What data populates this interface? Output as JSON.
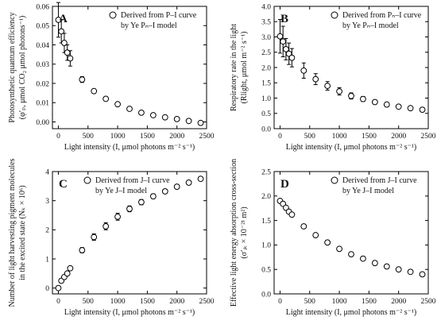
{
  "chart_data": [
    {
      "type": "scatter",
      "panel_letter": "A",
      "xlabel": "Light intensity (I, μmol photons m⁻² s⁻¹)",
      "ylabel_line1": "Photosynthetic quantum efficiency",
      "ylabel_line2": "(φ′ₚ, μmol CO₂ μmol photons⁻¹)",
      "xlim": [
        -100,
        2500
      ],
      "ylim": [
        -0.0035,
        0.06
      ],
      "xticks": [
        0,
        500,
        1000,
        1500,
        2000,
        2500
      ],
      "yticks": [
        0.0,
        0.01,
        0.02,
        0.03,
        0.04,
        0.05,
        0.06
      ],
      "ytick_labels": [
        "0.00",
        "0.01",
        "0.02",
        "0.03",
        "0.04",
        "0.05",
        "0.06"
      ],
      "legend_line1": "Derived from P–I curve",
      "legend_line2": "by Ye Pₙ–I model",
      "legend_position": "top-right",
      "x": [
        0,
        50,
        100,
        150,
        200,
        400,
        600,
        800,
        1000,
        1200,
        1400,
        1600,
        1800,
        2000,
        2200,
        2400
      ],
      "y": [
        0.053,
        0.047,
        0.041,
        0.036,
        0.033,
        0.022,
        0.016,
        0.012,
        0.0092,
        0.0068,
        0.0048,
        0.0035,
        0.0024,
        0.0015,
        0.0005,
        -0.0005
      ],
      "err": [
        0.009,
        0.006,
        0.005,
        0.004,
        0.004,
        0.0015,
        0.001,
        0.001,
        0.0008,
        0.0007,
        0.0006,
        0.0005,
        0.0005,
        0.0005,
        0.0005,
        0.0005
      ]
    },
    {
      "type": "scatter",
      "panel_letter": "B",
      "xlabel": "Light intensity (I, μmol photons m⁻² s⁻¹)",
      "ylabel_line1": "Respiratory rate in the light",
      "ylabel_line2": "(Rlight, μmol m⁻² s⁻¹)",
      "xlim": [
        -100,
        2500
      ],
      "ylim": [
        0,
        4.0
      ],
      "xticks": [
        0,
        500,
        1000,
        1500,
        2000,
        2500
      ],
      "yticks": [
        0.0,
        0.5,
        1.0,
        1.5,
        2.0,
        2.5,
        3.0,
        3.5,
        4.0
      ],
      "ytick_labels": [
        "0.0",
        "0.5",
        "1.0",
        "1.5",
        "2.0",
        "2.5",
        "3.0",
        "3.5",
        "4.0"
      ],
      "legend_line1": "Derived from Pₙ–I curve",
      "legend_line2": "by Ye Pₙ–I model",
      "legend_position": "top-right",
      "x": [
        0,
        50,
        100,
        150,
        200,
        400,
        600,
        800,
        1000,
        1200,
        1400,
        1600,
        1800,
        2000,
        2200,
        2400
      ],
      "y": [
        3.02,
        2.85,
        2.6,
        2.45,
        2.32,
        1.9,
        1.62,
        1.4,
        1.22,
        1.07,
        0.97,
        0.87,
        0.79,
        0.72,
        0.67,
        0.62
      ],
      "err": [
        0.55,
        0.5,
        0.35,
        0.35,
        0.3,
        0.25,
        0.18,
        0.14,
        0.12,
        0.1,
        0.08,
        0.06,
        0.06,
        0.05,
        0.05,
        0.05
      ]
    },
    {
      "type": "scatter",
      "panel_letter": "C",
      "xlabel": "Light intensity (I, μmol photons m⁻² s⁻¹)",
      "ylabel_line1": "Number of light harvesting pigment molecules",
      "ylabel_line2": "in the excited state (Nₖ × 10⁶)",
      "xlim": [
        -100,
        2500
      ],
      "ylim": [
        -0.2,
        4.0
      ],
      "xticks": [
        0,
        500,
        1000,
        1500,
        2000,
        2500
      ],
      "yticks": [
        0,
        1,
        2,
        3,
        4
      ],
      "ytick_labels": [
        "0",
        "1",
        "2",
        "3",
        "4"
      ],
      "legend_line1": "Derived from J–I curve",
      "legend_line2": "by Ye J–I model",
      "legend_position": "top-left",
      "x": [
        0,
        50,
        100,
        150,
        200,
        400,
        600,
        800,
        1000,
        1200,
        1400,
        1600,
        1800,
        2000,
        2200,
        2400
      ],
      "y": [
        0.0,
        0.25,
        0.38,
        0.5,
        0.68,
        1.3,
        1.75,
        2.12,
        2.45,
        2.72,
        2.95,
        3.15,
        3.32,
        3.48,
        3.62,
        3.75
      ],
      "err": [
        0.03,
        0.03,
        0.04,
        0.05,
        0.06,
        0.09,
        0.11,
        0.12,
        0.12,
        0.1,
        0.09,
        0.08,
        0.07,
        0.06,
        0.06,
        0.05
      ]
    },
    {
      "type": "scatter",
      "panel_letter": "D",
      "xlabel": "Light intensity (I, μmol photons m⁻² s⁻¹)",
      "ylabel_line1": "Effective light energy absorption cross-section",
      "ylabel_line2": "(σ′ᵢₖ × 10⁻²¹ m²)",
      "xlim": [
        -100,
        2500
      ],
      "ylim": [
        0,
        2.5
      ],
      "xticks": [
        0,
        500,
        1000,
        1500,
        2000,
        2500
      ],
      "yticks": [
        0.0,
        0.5,
        1.0,
        1.5,
        2.0,
        2.5
      ],
      "ytick_labels": [
        "0.0",
        "0.5",
        "1.0",
        "1.5",
        "2.0",
        "2.5"
      ],
      "legend_line1": "Derived from J–I curve",
      "legend_line2": "by Ye J–I model",
      "legend_position": "top-right",
      "x": [
        0,
        50,
        100,
        150,
        200,
        400,
        600,
        800,
        1000,
        1200,
        1400,
        1600,
        1800,
        2000,
        2200,
        2400
      ],
      "y": [
        1.9,
        1.84,
        1.76,
        1.68,
        1.62,
        1.38,
        1.2,
        1.05,
        0.92,
        0.81,
        0.72,
        0.63,
        0.56,
        0.5,
        0.45,
        0.4
      ],
      "err": [
        0.03,
        0.03,
        0.03,
        0.03,
        0.03,
        0.03,
        0.03,
        0.03,
        0.03,
        0.03,
        0.03,
        0.03,
        0.03,
        0.03,
        0.03,
        0.03
      ]
    }
  ]
}
